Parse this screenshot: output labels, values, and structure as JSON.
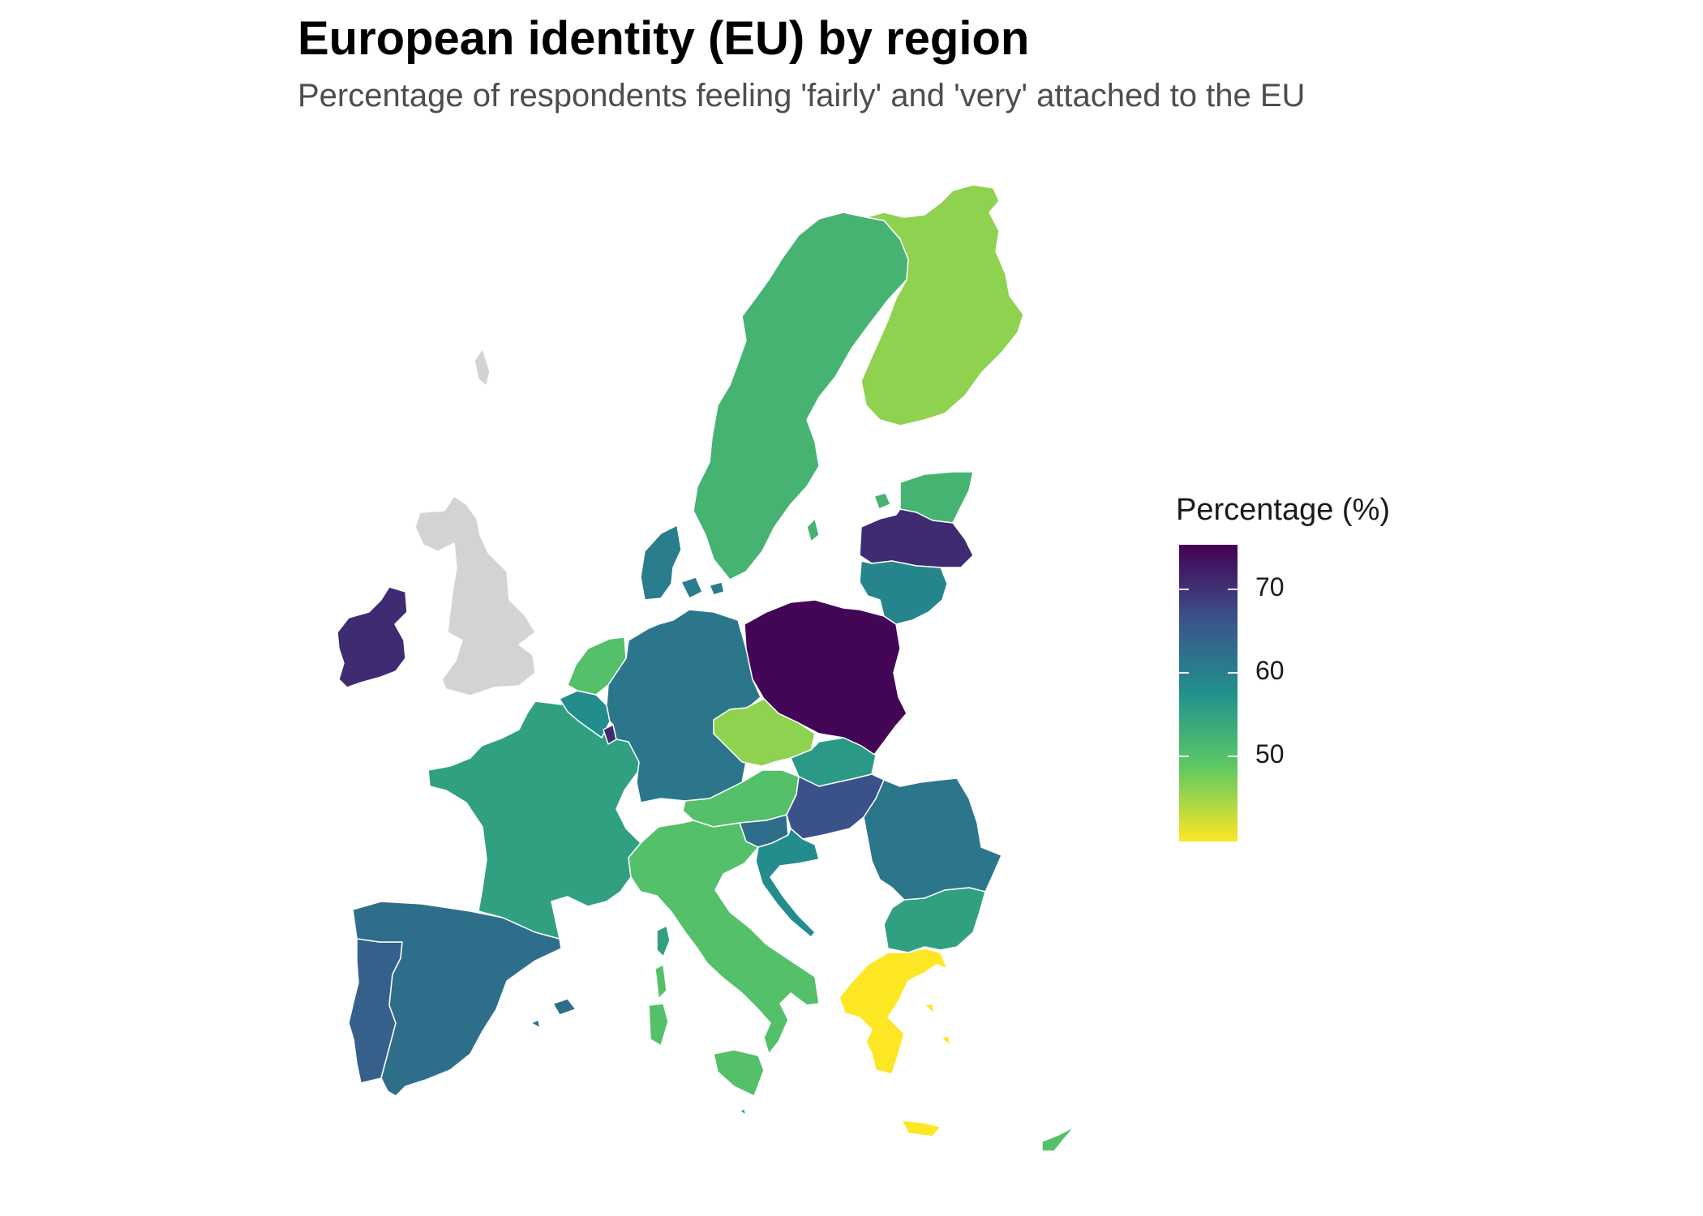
{
  "title": "European identity (EU) by region",
  "subtitle": "Percentage of respondents feeling 'fairly' and 'very' attached to the EU",
  "legend": {
    "title": "Percentage (%)",
    "ticks": [
      "70",
      "60",
      "50"
    ],
    "min": 41,
    "max": 75.5,
    "palette": [
      "#440154",
      "#3b528b",
      "#21918c",
      "#5ec962",
      "#fde725"
    ],
    "no_data_color": "#d3d3d3"
  },
  "chart_data": {
    "type": "choropleth",
    "title": "European identity (EU) by region",
    "subtitle": "Percentage of respondents feeling 'fairly' and 'very' attached to the EU",
    "value_label": "Percentage (%)",
    "color_scale": "viridis (reversed)",
    "no_data": [
      "United Kingdom"
    ],
    "regions": [
      {
        "name": "Poland",
        "value": 75
      },
      {
        "name": "Ireland",
        "value": 71
      },
      {
        "name": "Latvia",
        "value": 71
      },
      {
        "name": "Luxembourg",
        "value": 71
      },
      {
        "name": "Hungary",
        "value": 67
      },
      {
        "name": "Portugal",
        "value": 65
      },
      {
        "name": "Spain",
        "value": 63
      },
      {
        "name": "Slovenia",
        "value": 63
      },
      {
        "name": "Germany",
        "value": 62
      },
      {
        "name": "Romania",
        "value": 62
      },
      {
        "name": "Denmark",
        "value": 61
      },
      {
        "name": "Lithuania",
        "value": 60
      },
      {
        "name": "Belgium",
        "value": 59
      },
      {
        "name": "Croatia",
        "value": 59
      },
      {
        "name": "Slovakia",
        "value": 57
      },
      {
        "name": "France",
        "value": 56
      },
      {
        "name": "Bulgaria",
        "value": 56
      },
      {
        "name": "Malta",
        "value": 56
      },
      {
        "name": "Sweden",
        "value": 53
      },
      {
        "name": "Estonia",
        "value": 53
      },
      {
        "name": "Netherlands",
        "value": 51
      },
      {
        "name": "Austria",
        "value": 51
      },
      {
        "name": "Italy",
        "value": 51
      },
      {
        "name": "Cyprus",
        "value": 51
      },
      {
        "name": "Finland",
        "value": 47
      },
      {
        "name": "Czechia",
        "value": 47
      },
      {
        "name": "Greece",
        "value": 41
      }
    ]
  }
}
